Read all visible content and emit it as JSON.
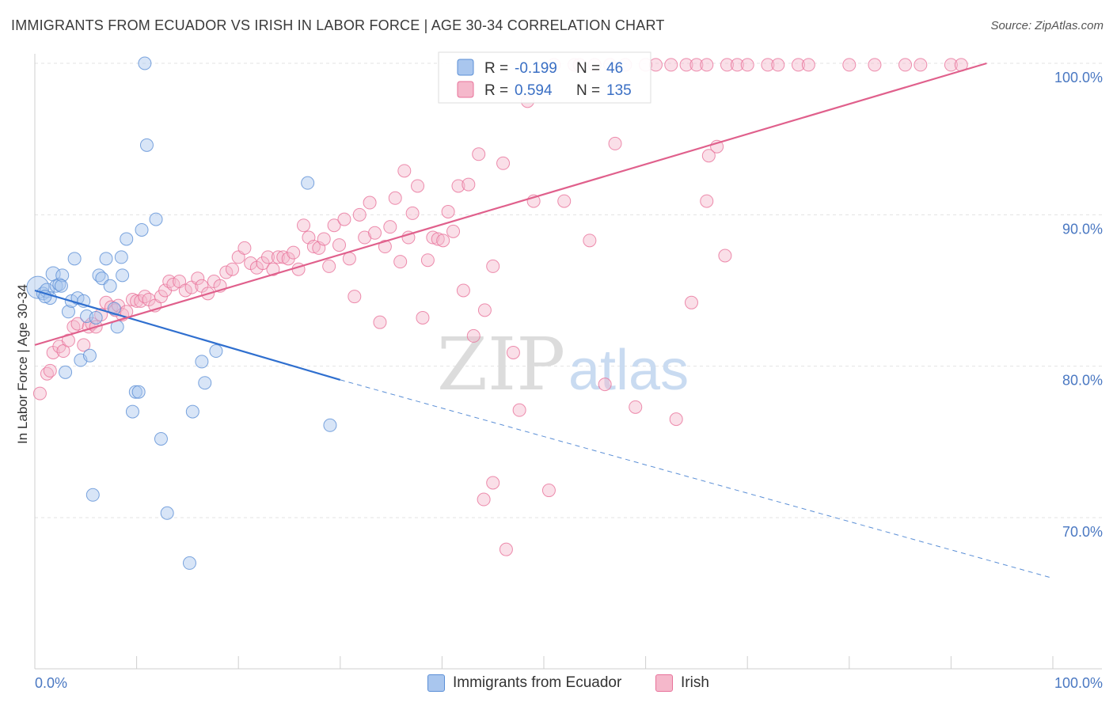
{
  "title": "IMMIGRANTS FROM ECUADOR VS IRISH IN LABOR FORCE | AGE 30-34 CORRELATION CHART",
  "source": "Source: ZipAtlas.com",
  "watermark": {
    "zip": "ZIP",
    "atlas": "atlas"
  },
  "chart_data": {
    "type": "scatter",
    "ylabel": "In Labor Force | Age 30-34",
    "x_tick_labels": [
      "0.0%",
      "100.0%"
    ],
    "y_tick_labels": [
      "70.0%",
      "80.0%",
      "90.0%",
      "100.0%"
    ],
    "y_ticks": [
      70,
      80,
      90,
      100
    ],
    "xlim": [
      0,
      100
    ],
    "ylim": [
      60,
      102.5
    ],
    "grid": true,
    "legend_position": "top-center",
    "legend": [
      {
        "series": "Immigrants from Ecuador",
        "r_label": "R =",
        "r_value": "-0.199",
        "n_label": "N =",
        "n_value": "46"
      },
      {
        "series": "Irish",
        "r_label": "R =",
        "r_value": "0.594",
        "n_label": "N =",
        "n_value": "135"
      }
    ],
    "series": [
      {
        "name": "Immigrants from Ecuador",
        "color": "#5b8fd6",
        "fill": "#a9c6ee",
        "trend": {
          "x0": 0,
          "y0": 85.0,
          "x1": 30,
          "y1": 79.1,
          "dash_to_x": 100,
          "dash_to_y": 66.0
        },
        "points": [
          [
            0.3,
            85.2,
            14
          ],
          [
            0.8,
            84.8,
            8
          ],
          [
            1.2,
            85.0,
            9
          ],
          [
            1.5,
            84.5,
            8
          ],
          [
            1.8,
            86.1,
            9
          ],
          [
            2.1,
            85.3,
            8
          ],
          [
            2.4,
            85.4,
            8
          ],
          [
            2.7,
            86.0,
            8
          ],
          [
            3.0,
            79.6,
            8
          ],
          [
            3.3,
            83.6,
            8
          ],
          [
            3.6,
            84.3,
            8
          ],
          [
            3.9,
            87.1,
            8
          ],
          [
            4.2,
            84.5,
            8
          ],
          [
            4.5,
            80.4,
            8
          ],
          [
            4.8,
            84.3,
            8
          ],
          [
            5.1,
            83.3,
            8
          ],
          [
            5.4,
            80.7,
            8
          ],
          [
            5.7,
            71.5,
            8
          ],
          [
            6.0,
            83.2,
            8
          ],
          [
            6.3,
            86.0,
            8
          ],
          [
            6.6,
            85.8,
            8
          ],
          [
            7.0,
            87.1,
            8
          ],
          [
            7.4,
            85.3,
            8
          ],
          [
            7.8,
            83.8,
            8
          ],
          [
            8.1,
            82.6,
            8
          ],
          [
            8.5,
            87.2,
            8
          ],
          [
            8.6,
            86.0,
            8
          ],
          [
            9.0,
            88.4,
            8
          ],
          [
            9.6,
            77.0,
            8
          ],
          [
            9.9,
            78.3,
            8
          ],
          [
            10.2,
            78.3,
            8
          ],
          [
            10.5,
            89.0,
            8
          ],
          [
            10.8,
            100.0,
            8
          ],
          [
            11.0,
            94.6,
            8
          ],
          [
            11.9,
            89.7,
            8
          ],
          [
            12.4,
            75.2,
            8
          ],
          [
            13.0,
            70.3,
            8
          ],
          [
            15.2,
            67.0,
            8
          ],
          [
            15.5,
            77.0,
            8
          ],
          [
            16.4,
            80.3,
            8
          ],
          [
            16.7,
            78.9,
            8
          ],
          [
            17.8,
            81.0,
            8
          ],
          [
            26.8,
            92.1,
            8
          ],
          [
            29.0,
            76.1,
            8
          ],
          [
            2.6,
            85.3,
            8
          ],
          [
            1.0,
            84.6,
            8
          ]
        ]
      },
      {
        "name": "Irish",
        "color": "#e8729a",
        "fill": "#f5b8cb",
        "trend": {
          "x0": 0,
          "y0": 81.4,
          "x1": 93.5,
          "y1": 100.0
        },
        "points": [
          [
            0.5,
            78.2,
            8
          ],
          [
            1.2,
            79.5,
            8
          ],
          [
            1.5,
            79.7,
            8
          ],
          [
            1.8,
            80.9,
            8
          ],
          [
            2.4,
            81.3,
            8
          ],
          [
            2.8,
            81.0,
            8
          ],
          [
            3.3,
            81.7,
            8
          ],
          [
            3.8,
            82.6,
            8
          ],
          [
            4.2,
            82.8,
            8
          ],
          [
            4.8,
            81.4,
            8
          ],
          [
            5.3,
            82.6,
            8
          ],
          [
            5.6,
            82.8,
            8
          ],
          [
            6.0,
            82.6,
            8
          ],
          [
            6.5,
            83.4,
            8
          ],
          [
            7.0,
            84.2,
            8
          ],
          [
            7.5,
            83.9,
            8
          ],
          [
            7.9,
            83.7,
            8
          ],
          [
            8.2,
            84.0,
            8
          ],
          [
            8.6,
            83.4,
            8
          ],
          [
            9.0,
            83.6,
            8
          ],
          [
            9.6,
            84.4,
            8
          ],
          [
            10.0,
            84.3,
            8
          ],
          [
            10.4,
            84.3,
            8
          ],
          [
            10.8,
            84.6,
            8
          ],
          [
            11.2,
            84.4,
            8
          ],
          [
            11.8,
            84.0,
            8
          ],
          [
            12.4,
            84.6,
            8
          ],
          [
            12.8,
            85.0,
            8
          ],
          [
            13.2,
            85.6,
            8
          ],
          [
            13.6,
            85.4,
            8
          ],
          [
            14.2,
            85.6,
            8
          ],
          [
            14.8,
            85.0,
            8
          ],
          [
            15.4,
            85.2,
            8
          ],
          [
            16.0,
            85.8,
            8
          ],
          [
            16.4,
            85.3,
            8
          ],
          [
            17.0,
            84.8,
            8
          ],
          [
            17.6,
            85.6,
            8
          ],
          [
            18.2,
            85.3,
            8
          ],
          [
            18.8,
            86.2,
            8
          ],
          [
            19.4,
            86.4,
            8
          ],
          [
            20.0,
            87.2,
            8
          ],
          [
            20.6,
            87.8,
            8
          ],
          [
            21.2,
            86.8,
            8
          ],
          [
            21.8,
            86.5,
            8
          ],
          [
            22.4,
            86.8,
            8
          ],
          [
            22.9,
            87.2,
            8
          ],
          [
            23.4,
            86.4,
            8
          ],
          [
            23.9,
            87.2,
            8
          ],
          [
            24.4,
            87.2,
            8
          ],
          [
            24.9,
            87.1,
            8
          ],
          [
            25.4,
            87.5,
            8
          ],
          [
            25.9,
            86.4,
            8
          ],
          [
            26.4,
            89.3,
            8
          ],
          [
            26.9,
            88.5,
            8
          ],
          [
            27.4,
            87.9,
            8
          ],
          [
            27.9,
            87.8,
            8
          ],
          [
            28.4,
            88.4,
            8
          ],
          [
            28.9,
            86.6,
            8
          ],
          [
            29.4,
            89.3,
            8
          ],
          [
            29.9,
            88.0,
            8
          ],
          [
            30.4,
            89.7,
            8
          ],
          [
            30.9,
            87.1,
            8
          ],
          [
            31.4,
            84.6,
            8
          ],
          [
            31.9,
            90.0,
            8
          ],
          [
            32.4,
            88.5,
            8
          ],
          [
            32.9,
            90.8,
            8
          ],
          [
            33.4,
            88.8,
            8
          ],
          [
            33.9,
            82.9,
            8
          ],
          [
            34.4,
            87.9,
            8
          ],
          [
            34.9,
            89.2,
            8
          ],
          [
            35.4,
            91.1,
            8
          ],
          [
            35.9,
            86.9,
            8
          ],
          [
            36.3,
            92.9,
            8
          ],
          [
            36.7,
            88.5,
            8
          ],
          [
            37.1,
            90.1,
            8
          ],
          [
            37.6,
            91.9,
            8
          ],
          [
            38.1,
            83.2,
            8
          ],
          [
            38.6,
            87.0,
            8
          ],
          [
            39.1,
            88.5,
            8
          ],
          [
            39.6,
            88.4,
            8
          ],
          [
            40.1,
            88.3,
            8
          ],
          [
            40.6,
            90.2,
            8
          ],
          [
            41.1,
            88.9,
            8
          ],
          [
            41.6,
            91.9,
            8
          ],
          [
            42.1,
            85.0,
            8
          ],
          [
            42.6,
            92.0,
            8
          ],
          [
            43.1,
            82.0,
            8
          ],
          [
            43.6,
            94.0,
            8
          ],
          [
            44.2,
            83.7,
            8
          ],
          [
            45.0,
            86.6,
            8
          ],
          [
            46.0,
            93.4,
            8
          ],
          [
            47.0,
            80.9,
            8
          ],
          [
            47.6,
            77.1,
            8
          ],
          [
            48.4,
            97.5,
            8
          ],
          [
            49.0,
            90.9,
            8
          ],
          [
            50.5,
            71.8,
            8
          ],
          [
            51.0,
            99.9,
            8
          ],
          [
            52.0,
            90.9,
            8
          ],
          [
            53.0,
            99.9,
            8
          ],
          [
            54.5,
            88.3,
            8
          ],
          [
            55.0,
            99.9,
            8
          ],
          [
            56.0,
            78.8,
            8
          ],
          [
            56.5,
            99.9,
            8
          ],
          [
            57.0,
            94.7,
            8
          ],
          [
            58.0,
            99.9,
            8
          ],
          [
            59.0,
            77.3,
            8
          ],
          [
            60.0,
            99.9,
            8
          ],
          [
            61.0,
            99.9,
            8
          ],
          [
            62.5,
            99.9,
            8
          ],
          [
            63.0,
            76.5,
            8
          ],
          [
            64.0,
            99.9,
            8
          ],
          [
            64.5,
            84.2,
            8
          ],
          [
            65.0,
            99.9,
            8
          ],
          [
            66.0,
            99.9,
            8
          ],
          [
            67.0,
            94.5,
            8
          ],
          [
            68.0,
            99.9,
            8
          ],
          [
            69.0,
            99.9,
            8
          ],
          [
            70.0,
            99.9,
            8
          ],
          [
            72.0,
            99.9,
            8
          ],
          [
            73.0,
            99.9,
            8
          ],
          [
            75.0,
            99.9,
            8
          ],
          [
            76.0,
            99.9,
            8
          ],
          [
            80.0,
            99.9,
            8
          ],
          [
            82.5,
            99.9,
            8
          ],
          [
            85.5,
            99.9,
            8
          ],
          [
            87.0,
            99.9,
            8
          ],
          [
            90.0,
            99.9,
            8
          ],
          [
            91.0,
            99.9,
            8
          ],
          [
            45.0,
            72.3,
            8
          ],
          [
            46.3,
            67.9,
            8
          ],
          [
            44.1,
            71.2,
            8
          ],
          [
            53.5,
            99.9,
            8
          ],
          [
            66.2,
            93.9,
            8
          ],
          [
            66.0,
            90.9,
            8
          ],
          [
            67.8,
            87.3,
            8
          ]
        ]
      }
    ]
  }
}
